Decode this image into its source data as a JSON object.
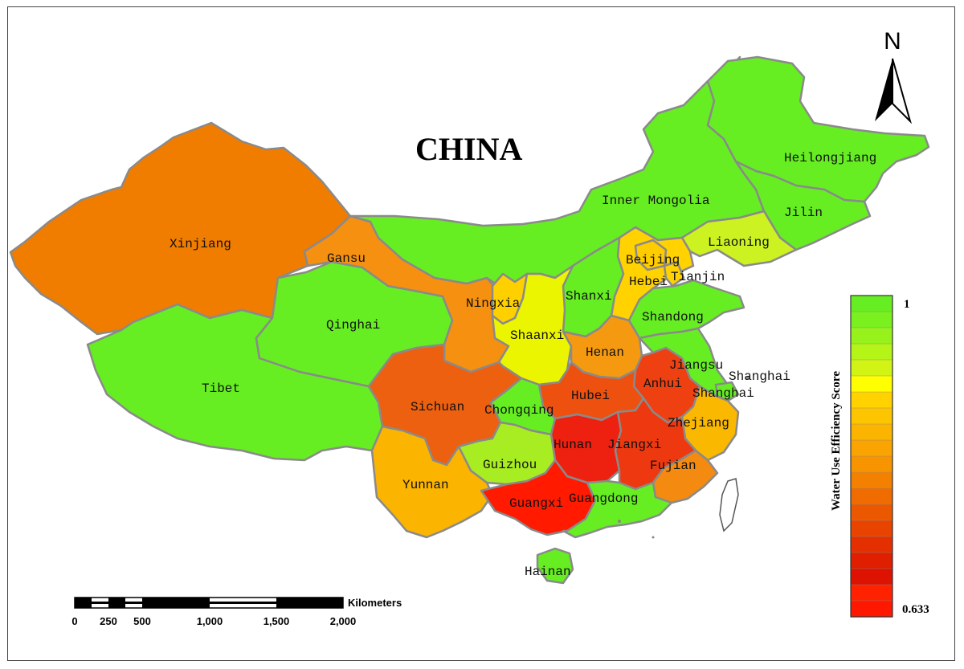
{
  "title": "CHINA",
  "north_label": "N",
  "legend": {
    "title": "Water Use Efficiency Score",
    "max_label": "1",
    "min_label": "0.633",
    "colors": [
      "#66ee22",
      "#7af01e",
      "#96f21a",
      "#b4f416",
      "#d2f414",
      "#ffff00",
      "#ffd200",
      "#fdc400",
      "#fbb400",
      "#f9a400",
      "#f79400",
      "#f48000",
      "#f06c00",
      "#ec5800",
      "#e84400",
      "#e43000",
      "#e01e00",
      "#dd1200",
      "#ff2200",
      "#ff1800"
    ]
  },
  "scale_bar": {
    "unit": "Kilometers",
    "ticks": [
      "0",
      "250",
      "500",
      "1,000",
      "1,500",
      "2,000"
    ]
  },
  "provinces": [
    {
      "name": "Xinjiang",
      "label": "Xinjiang",
      "color": "#f07c00"
    },
    {
      "name": "Tibet",
      "label": "Tibet",
      "color": "#66ee22"
    },
    {
      "name": "Qinghai",
      "label": "Qinghai",
      "color": "#66ee22"
    },
    {
      "name": "Gansu",
      "label": "Gansu",
      "color": "#f59010"
    },
    {
      "name": "Inner Mongolia",
      "label": "Inner Mongolia",
      "color": "#66ee22"
    },
    {
      "name": "Heilongjiang",
      "label": "Heilongjiang",
      "color": "#66ee22"
    },
    {
      "name": "Jilin",
      "label": "Jilin",
      "color": "#66ee22"
    },
    {
      "name": "Liaoning",
      "label": "Liaoning",
      "color": "#ccf222"
    },
    {
      "name": "Beijing",
      "label": "Beijing",
      "color": "#ffcc00"
    },
    {
      "name": "Tianjin",
      "label": "Tianjin",
      "color": "#ffd200"
    },
    {
      "name": "Hebei",
      "label": "Hebei",
      "color": "#ffd200"
    },
    {
      "name": "Shanxi",
      "label": "Shanxi",
      "color": "#66ee22"
    },
    {
      "name": "Shandong",
      "label": "Shandong",
      "color": "#66ee22"
    },
    {
      "name": "Ningxia",
      "label": "Ningxia",
      "color": "#ffd000"
    },
    {
      "name": "Shaanxi",
      "label": "Shaanxi",
      "color": "#ecf500"
    },
    {
      "name": "Henan",
      "label": "Henan",
      "color": "#f59a10"
    },
    {
      "name": "Jiangsu",
      "label": "Jiangsu",
      "color": "#66ee22"
    },
    {
      "name": "Shanghai",
      "label": "Shanghai",
      "color": "#66ee22"
    },
    {
      "name": "Anhui",
      "label": "Anhui",
      "color": "#ee4010"
    },
    {
      "name": "Hubei",
      "label": "Hubei",
      "color": "#ee5010"
    },
    {
      "name": "Chongqing",
      "label": "Chongqing",
      "color": "#66ee22"
    },
    {
      "name": "Sichuan",
      "label": "Sichuan",
      "color": "#ec6010"
    },
    {
      "name": "Zhejiang",
      "label": "Zhejiang",
      "color": "#fbb800"
    },
    {
      "name": "Hunan",
      "label": "Hunan",
      "color": "#ee2010"
    },
    {
      "name": "Jiangxi",
      "label": "Jiangxi",
      "color": "#ee3810"
    },
    {
      "name": "Guizhou",
      "label": "Guizhou",
      "color": "#a8ec22"
    },
    {
      "name": "Fujian",
      "label": "Fujian",
      "color": "#f58a10"
    },
    {
      "name": "Yunnan",
      "label": "Yunnan",
      "color": "#fbb400"
    },
    {
      "name": "Guangxi",
      "label": "Guangxi",
      "color": "#ff1a00"
    },
    {
      "name": "Guangdong",
      "label": "Guangdong",
      "color": "#66ee22"
    },
    {
      "name": "Hainan",
      "label": "Hainan",
      "color": "#66ee22"
    }
  ],
  "extra_labels": [
    {
      "name": "shanghai-offshore-label",
      "text": "Shanghai"
    }
  ]
}
